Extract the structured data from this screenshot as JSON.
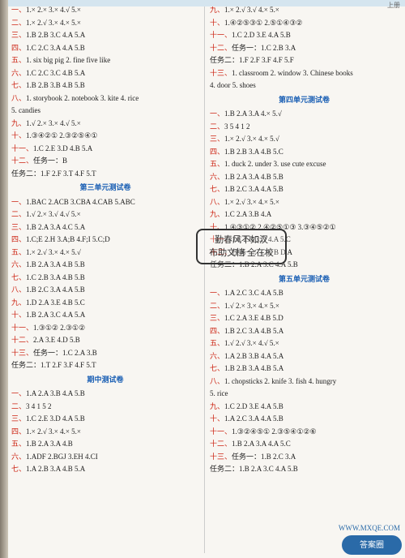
{
  "meta": {
    "top_right": "上册",
    "watermark_text": "答案圈",
    "watermark_url": "WWW.MXQE.COM"
  },
  "stamp": {
    "line1": "勤春风不如汉",
    "line2": "布助文档 全在校"
  },
  "left": [
    {
      "n": "一、",
      "t": "1.×  2.×  3.×  4.√  5.×"
    },
    {
      "n": "二、",
      "t": "1.×  2.√  3.×  4.×  5.×"
    },
    {
      "n": "三、",
      "t": "1.B  2.B  3.C  4.A  5.A"
    },
    {
      "n": "四、",
      "t": "1.C  2.C  3.A  4.A  5.B"
    },
    {
      "n": "五、",
      "t": "1. six  big  pig   2. fine  five  like"
    },
    {
      "n": "六、",
      "t": "1.C  2.C  3.C  4.B  5.A"
    },
    {
      "n": "七、",
      "t": "1.B  2.B  3.B  4.B  5.B"
    },
    {
      "n": "八、",
      "t": "1. storybook  2. notebook  3. kite  4. rice"
    },
    {
      "n": "",
      "t": "5. candies"
    },
    {
      "n": "九、",
      "t": "1.√  2.×  3.×  4.√  5.×"
    },
    {
      "n": "十、",
      "t": "1.③④②①   2.③②⑤④①"
    },
    {
      "n": "十一、",
      "t": "1.C  2.E  3.D  4.B  5.A"
    },
    {
      "n": "十二、",
      "t": "任务一：B"
    },
    {
      "n": "",
      "t": "任务二：1.F  2.F  3.T  4.F  5.T"
    },
    {
      "h": "第三单元测试卷"
    },
    {
      "n": "一、",
      "t": "1.BAC  2.ACB  3.CBA  4.CAB  5.ABC"
    },
    {
      "n": "二、",
      "t": "1.√  2.×  3.√  4.√  5.×"
    },
    {
      "n": "三、",
      "t": "1.B  2.A  3.A  4.C  5.A"
    },
    {
      "n": "四、",
      "t": "1.C;E  2.H  3.A;B  4.F;I  5.C;D"
    },
    {
      "n": "五、",
      "t": "1.×  2.√  3.×  4.×  5.√"
    },
    {
      "n": "六、",
      "t": "1.B  2.A  3.A  4.B  5.B"
    },
    {
      "n": "七、",
      "t": "1.C  2.B  3.A  4.B  5.B"
    },
    {
      "n": "八、",
      "t": "1.B  2.C  3.A  4.A  5.B"
    },
    {
      "n": "九、",
      "t": "1.D  2.A  3.E  4.B  5.C"
    },
    {
      "n": "十、",
      "t": "1.B  2.A  3.C  4.A  5.A"
    },
    {
      "n": "十一、",
      "t": "1.③①②   2.③①②"
    },
    {
      "n": "十二、",
      "t": "2.A  3.E  4.D  5.B"
    },
    {
      "n": "十三、",
      "t": "任务一：1.C  2.A  3.B"
    },
    {
      "n": "",
      "t": "任务二：1.T  2.F  3.F  4.F  5.T"
    },
    {
      "h": "期中测试卷"
    },
    {
      "n": "一、",
      "t": "1.A  2.A  3.B  4.A  5.B"
    },
    {
      "n": "二、",
      "t": "3  4  1  5  2"
    },
    {
      "n": "三、",
      "t": "1.C  2.E  3.D  4.A  5.B"
    },
    {
      "n": "四、",
      "t": "1.×  2.√  3.×  4.×  5.×"
    },
    {
      "n": "五、",
      "t": "1.B  2.A  3.A  4.B"
    },
    {
      "n": "六、",
      "t": "1.ADF  2.BGJ  3.EH  4.CI"
    },
    {
      "n": "七、",
      "t": "1.A  2.B  3.A  4.B  5.A"
    }
  ],
  "right": [
    {
      "n": "九、",
      "t": "1.×  2.√  3.√  4.×  5.×"
    },
    {
      "n": "十、",
      "t": "1.④②⑤③①   2.⑤①④③②"
    },
    {
      "n": "十一、",
      "t": "1.C  2.D  3.E  4.A  5.B"
    },
    {
      "n": "十二、",
      "t": "任务一：1.C  2.B  3.A"
    },
    {
      "n": "",
      "t": "任务二：1.F  2.F  3.F  4.F  5.F"
    },
    {
      "n": "十三、",
      "t": "1. classroom  2. window  3. Chinese books"
    },
    {
      "n": "",
      "t": "4. door  5. shoes"
    },
    {
      "h": "第四单元测试卷"
    },
    {
      "n": "一、",
      "t": "1.B  2.A  3.A  4.×  5.√"
    },
    {
      "n": "二、",
      "t": "3  5  4  1  2"
    },
    {
      "n": "三、",
      "t": "1.×  2.√  3.×  4.×  5.√"
    },
    {
      "n": "四、",
      "t": "1.B  2.B  3.A  4.B  5.C"
    },
    {
      "n": "五、",
      "t": "1. duck  2. under  3. use  cute  excuse"
    },
    {
      "n": "六、",
      "t": "1.B  2.A  3.A  4.B  5.B"
    },
    {
      "n": "七、",
      "t": "1.B  2.C  3.A  4.A  5.B"
    },
    {
      "n": "八、",
      "t": "1.×  2.√  3.×  4.×  5.×"
    },
    {
      "n": "九、",
      "t": "1.C  2.A  3.B  4.A"
    },
    {
      "n": "十、",
      "t": "1.④③①②   2.④②⑤①③   3.③④⑤②①"
    },
    {
      "n": "十一、",
      "t": "1.E  2.B  3.D  4.A  5.C"
    },
    {
      "n": "十二、",
      "t": "任务一：C  E  B  D  A"
    },
    {
      "n": "",
      "t": "任务二：1.B  2.A  3.C  4.A  5.B"
    },
    {
      "h": "第五单元测试卷"
    },
    {
      "n": "一、",
      "t": "1.A  2.C  3.C  4.A  5.B"
    },
    {
      "n": "二、",
      "t": "1.√  2.×  3.×  4.×  5.×"
    },
    {
      "n": "三、",
      "t": "1.C  2.A  3.E  4.B  5.D"
    },
    {
      "n": "四、",
      "t": "1.B  2.C  3.A  4.B  5.A"
    },
    {
      "n": "五、",
      "t": "1.√  2.√  3.×  4.√  5.×"
    },
    {
      "n": "六、",
      "t": "1.A  2.B  3.B  4.A  5.A"
    },
    {
      "n": "七、",
      "t": "1.B  2.B  3.A  4.B  5.A"
    },
    {
      "n": "八、",
      "t": "1. chopsticks  2. knife  3. fish  4. hungry"
    },
    {
      "n": "",
      "t": "5. rice"
    },
    {
      "n": "九、",
      "t": "1.C  2.D  3.E  4.A  5.B"
    },
    {
      "n": "十、",
      "t": "1.A  2.C  3.A  4.A  5.B"
    },
    {
      "n": "十一、",
      "t": "1.③②④⑤①   2.③⑤④①②⑥"
    },
    {
      "n": "十二、",
      "t": "1.B  2.A  3.A  4.A  5.C"
    },
    {
      "n": "十三、",
      "t": "任务一：1.B  2.C  3.A"
    },
    {
      "n": "",
      "t": "任务二：1.B  2.A  3.C  4.A  5.B"
    }
  ]
}
